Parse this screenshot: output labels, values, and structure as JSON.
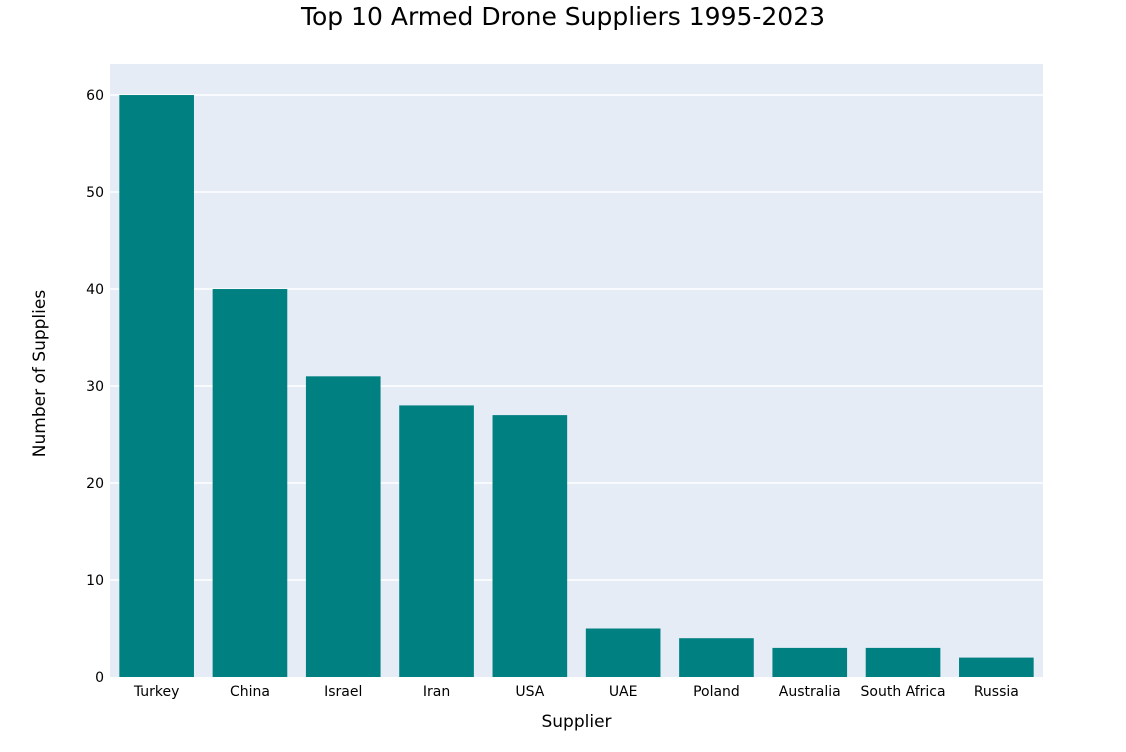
{
  "colors": {
    "bar": "#008080",
    "plot_background": "#e5ecf6",
    "gridline": "#ffffff"
  },
  "chart_data": {
    "type": "bar",
    "title": "Top 10 Armed Drone Suppliers 1995-2023",
    "xlabel": "Supplier",
    "ylabel": "Number of Supplies",
    "categories": [
      "Turkey",
      "China",
      "Israel",
      "Iran",
      "USA",
      "UAE",
      "Poland",
      "Australia",
      "South Africa",
      "Russia"
    ],
    "values": [
      60,
      40,
      31,
      28,
      27,
      5,
      4,
      3,
      3,
      2
    ],
    "ylim": [
      0,
      63.2
    ],
    "yticks": [
      0,
      10,
      20,
      30,
      40,
      50,
      60
    ],
    "grid": true,
    "legend": "none"
  }
}
